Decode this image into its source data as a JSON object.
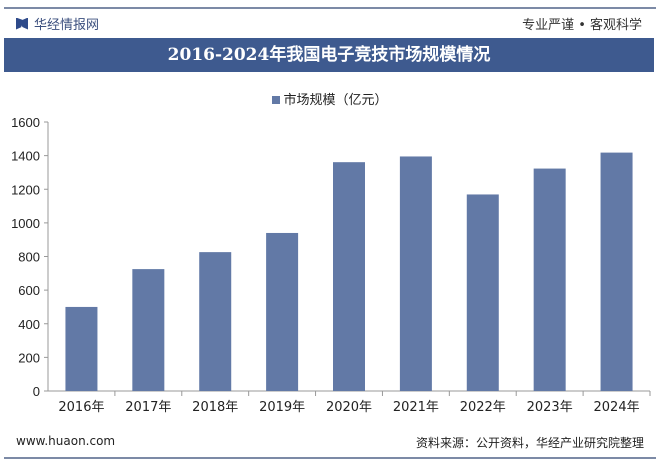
{
  "header": {
    "brand": "华经情报网",
    "slogan": "专业严谨 • 客观科学",
    "title": "2016-2024年我国电子竞技市场规模情况"
  },
  "footer": {
    "url": "www.huaon.com",
    "source": "资料来源：公开资料，华经产业研究院整理"
  },
  "chart_data": {
    "type": "bar",
    "title": "2016-2024年我国电子竞技市场规模情况",
    "categories": [
      "2016年",
      "2017年",
      "2018年",
      "2019年",
      "2020年",
      "2021年",
      "2022年",
      "2023年",
      "2024年"
    ],
    "series": [
      {
        "name": "市场规模（亿元）",
        "values": [
          500,
          725,
          826,
          940,
          1361,
          1395,
          1169,
          1323,
          1418
        ],
        "color": "#6279a6"
      }
    ],
    "ylim": [
      0,
      1600
    ],
    "yticks": [
      0,
      200,
      400,
      600,
      800,
      1000,
      1200,
      1400,
      1600
    ],
    "grid": false,
    "legend": "top"
  }
}
